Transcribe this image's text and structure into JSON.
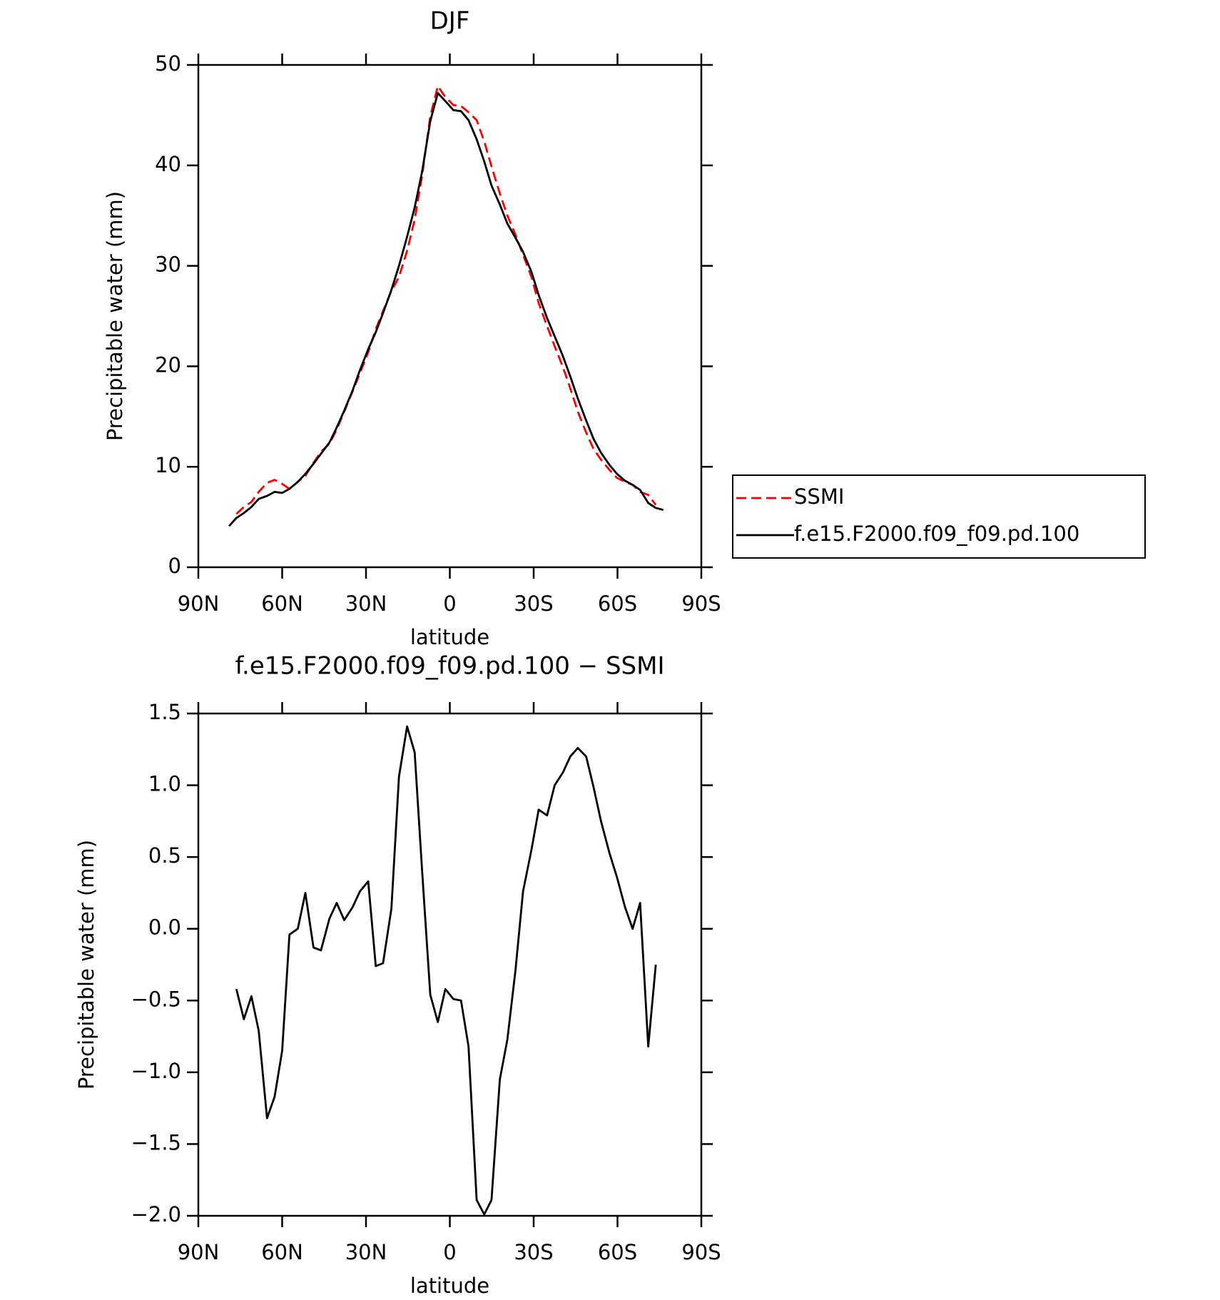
{
  "chart_data": [
    {
      "type": "line",
      "title": "DJF",
      "x_label": "latitude",
      "y_label": "Precipitable water (mm)",
      "x": [
        79.0,
        76.4,
        73.7,
        71.0,
        68.4,
        65.4,
        62.7,
        60.0,
        57.4,
        54.4,
        51.7,
        48.8,
        46.1,
        43.1,
        40.5,
        37.8,
        34.8,
        32.2,
        29.2,
        26.5,
        23.9,
        20.9,
        18.2,
        15.3,
        12.6,
        9.9,
        7.0,
        4.3,
        1.6,
        -1.3,
        -4.0,
        -6.7,
        -9.6,
        -12.3,
        -14.9,
        -17.9,
        -20.6,
        -23.5,
        -26.2,
        -29.2,
        -31.8,
        -34.8,
        -37.5,
        -40.5,
        -43.1,
        -45.8,
        -48.8,
        -51.4,
        -54.1,
        -57.1,
        -59.8,
        -62.7,
        -65.4,
        -68.1,
        -71.0,
        -73.7,
        -76.4
      ],
      "xlim": [
        90,
        -90
      ],
      "xticks": [
        {
          "value": 90,
          "label": "90N"
        },
        {
          "value": 60,
          "label": "60N"
        },
        {
          "value": 30,
          "label": "30N"
        },
        0,
        {
          "value": -30,
          "label": "30S"
        },
        {
          "value": -60,
          "label": "60S"
        },
        {
          "value": -90,
          "label": "90S"
        }
      ],
      "ylim": [
        0,
        50
      ],
      "yticks": [
        0,
        10,
        20,
        30,
        40,
        50
      ],
      "legend": "outside-right",
      "series": [
        {
          "name": "SSMI",
          "color": "#ff0000",
          "dash": "dashed",
          "values": [
            null,
            5.3,
            6.0,
            6.5,
            7.5,
            8.4,
            8.7,
            8.3,
            7.8,
            8.5,
            9.1,
            10.4,
            11.5,
            12.3,
            13.7,
            15.5,
            17.5,
            19.3,
            21.4,
            23.7,
            25.5,
            27.5,
            28.9,
            31.5,
            34.6,
            39.0,
            44.9,
            47.9,
            46.8,
            46.0,
            45.9,
            45.3,
            44.5,
            42.4,
            39.9,
            37.2,
            35.0,
            33.1,
            31.1,
            28.9,
            26.3,
            24.0,
            22.0,
            19.9,
            17.8,
            15.5,
            13.4,
            11.8,
            10.7,
            9.7,
            8.9,
            8.5,
            8.2,
            7.5,
            7.2,
            6.2,
            null
          ]
        },
        {
          "name": "f.e15.F2000.f09_f09.pd.100",
          "color": "#000000",
          "dash": "solid",
          "values": [
            4.1,
            4.9,
            5.4,
            6.0,
            6.8,
            7.1,
            7.5,
            7.4,
            7.8,
            8.5,
            9.3,
            10.3,
            11.3,
            12.4,
            13.9,
            15.6,
            17.6,
            19.6,
            21.7,
            23.4,
            25.3,
            27.6,
            30.0,
            32.9,
            35.8,
            39.4,
            44.4,
            47.2,
            46.4,
            45.5,
            45.4,
            44.5,
            42.6,
            40.4,
            38.0,
            36.1,
            34.2,
            32.8,
            31.4,
            29.4,
            27.1,
            24.8,
            23.0,
            21.0,
            19.0,
            16.8,
            14.6,
            12.8,
            11.4,
            10.2,
            9.3,
            8.6,
            8.2,
            7.7,
            6.4,
            5.9,
            5.7
          ]
        }
      ]
    },
    {
      "type": "line",
      "title": "f.e15.F2000.f09_f09.pd.100 − SSMI",
      "x_label": "latitude",
      "y_label": "Precipitable water (mm)",
      "x": [
        76.4,
        73.7,
        71.0,
        68.4,
        65.4,
        62.7,
        60.0,
        57.4,
        54.4,
        51.7,
        48.8,
        46.1,
        43.1,
        40.5,
        37.8,
        34.8,
        32.2,
        29.2,
        26.5,
        23.9,
        20.9,
        18.2,
        15.3,
        12.6,
        9.9,
        7.0,
        4.3,
        1.6,
        -1.3,
        -4.0,
        -6.7,
        -9.6,
        -12.3,
        -14.9,
        -17.9,
        -20.6,
        -23.5,
        -26.2,
        -29.2,
        -31.8,
        -34.8,
        -37.5,
        -40.5,
        -43.1,
        -45.8,
        -48.8,
        -51.4,
        -54.1,
        -57.1,
        -59.8,
        -62.7,
        -65.4,
        -68.1,
        -71.0,
        -73.7
      ],
      "xlim": [
        90,
        -90
      ],
      "xticks": [
        {
          "value": 90,
          "label": "90N"
        },
        {
          "value": 60,
          "label": "60N"
        },
        {
          "value": 30,
          "label": "30N"
        },
        0,
        {
          "value": -30,
          "label": "30S"
        },
        {
          "value": -60,
          "label": "60S"
        },
        {
          "value": -90,
          "label": "90S"
        }
      ],
      "ylim": [
        -2,
        1.5
      ],
      "yticks": [
        {
          "value": -2,
          "label": "−2.0"
        },
        {
          "value": -1.5,
          "label": "−1.5"
        },
        {
          "value": -1,
          "label": "−1.0"
        },
        {
          "value": -0.5,
          "label": "−0.5"
        },
        {
          "value": 0,
          "label": "0.0"
        },
        0.5,
        {
          "value": 1,
          "label": "1.0"
        },
        1.5
      ],
      "color": "#000000",
      "values": [
        -0.42,
        -0.63,
        -0.47,
        -0.71,
        -1.32,
        -1.17,
        -0.85,
        -0.04,
        0.0,
        0.25,
        -0.13,
        -0.15,
        0.07,
        0.18,
        0.06,
        0.15,
        0.26,
        0.33,
        -0.26,
        -0.24,
        0.14,
        1.06,
        1.41,
        1.23,
        0.4,
        -0.46,
        -0.65,
        -0.42,
        -0.49,
        -0.5,
        -0.82,
        -1.89,
        -1.99,
        -1.89,
        -1.05,
        -0.77,
        -0.29,
        0.26,
        0.55,
        0.83,
        0.79,
        1.0,
        1.09,
        1.2,
        1.26,
        1.2,
        0.99,
        0.75,
        0.53,
        0.36,
        0.15,
        0.0,
        0.18,
        -0.82,
        -0.25
      ]
    }
  ]
}
